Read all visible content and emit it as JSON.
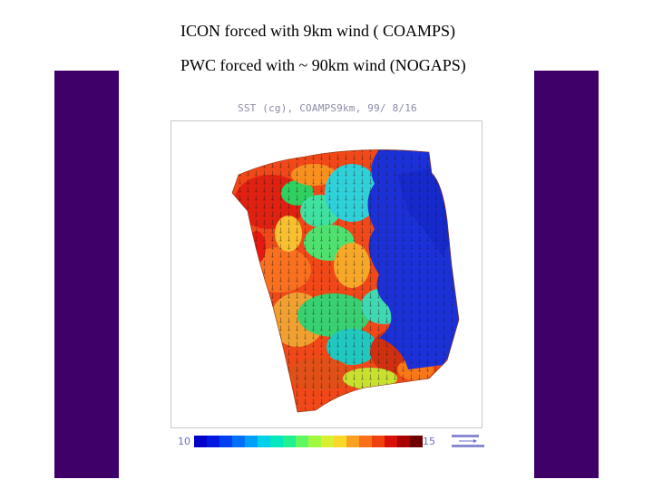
{
  "slide": {
    "line1": "ICON forced with 9km wind ( COAMPS)",
    "line2": "PWC forced with ~ 90km wind (NOGAPS)",
    "side_bar_color": "#3f0069"
  },
  "figure": {
    "title": "SST (cg), COAMPS9km, 99/ 8/16",
    "colorbar": {
      "min_label": "10",
      "max_label": "15",
      "colors": [
        "#0000c8",
        "#0018e0",
        "#0040f0",
        "#0070f8",
        "#00a0f8",
        "#00d0e8",
        "#00e8c0",
        "#20f090",
        "#60f860",
        "#a0f840",
        "#d8f030",
        "#f8d828",
        "#f8a020",
        "#f87018",
        "#f04010",
        "#d81008",
        "#a80000",
        "#700000"
      ]
    },
    "vector_key_icon": "vector-scale-arrow-icon",
    "map_icon": "sst-field-map"
  }
}
